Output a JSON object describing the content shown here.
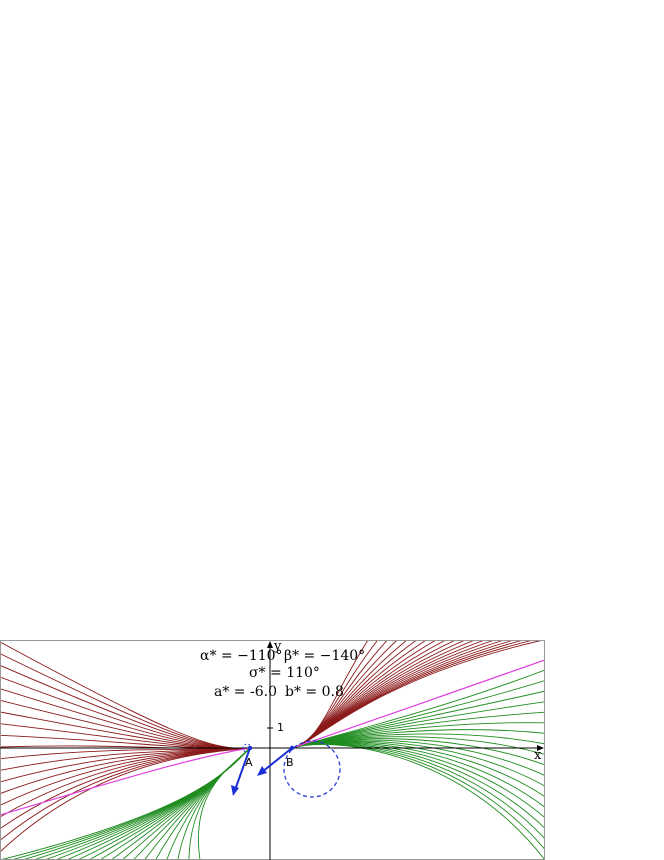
{
  "axes": {
    "x_label": "x",
    "y_label": "y",
    "y_tick_label": "1"
  },
  "points": {
    "A": "A",
    "B": "B"
  },
  "params": {
    "alpha": "α* = −110°",
    "beta": "β* = −140°",
    "sigma": "σ* = 110°",
    "a": "a* = -6.0",
    "b": "b* = 0.8"
  },
  "colors": {
    "left_upper": "#8b1a1a",
    "right_upper": "#8b1a1a",
    "left_lower": "#1e8c1e",
    "right_lower": "#1e8c1e",
    "highlight": "#e040e0",
    "vector": "#1a2fd6",
    "circle": "#2a3fd6",
    "axis": "#000000",
    "frame": "#999999"
  },
  "icons": {
    "vector_arrow": "arrow-icon"
  }
}
